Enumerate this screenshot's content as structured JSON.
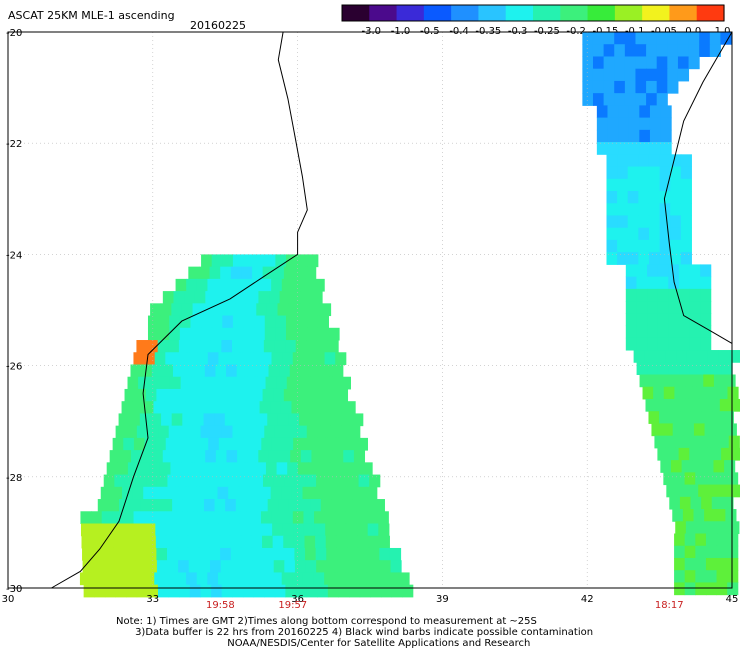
{
  "header": {
    "title": "ASCAT 25KM MLE-1 ascending",
    "date": "20160225"
  },
  "colorbar": {
    "labels": [
      "-3.0",
      "-1.0",
      "-0.5",
      "-0.4",
      "-0.35",
      "-0.3",
      "-0.25",
      "-0.2",
      "-0.15",
      "-0.1",
      "-0.05",
      "0.0",
      "1.0"
    ],
    "colors": [
      "#2a0030",
      "#4b0a8c",
      "#3a2ad8",
      "#0a5aff",
      "#1f90ff",
      "#29c4ff",
      "#1ef2ee",
      "#25f2b0",
      "#3cf07c",
      "#37ec3a",
      "#9af024",
      "#f2f21e",
      "#ff9a1a",
      "#ff3a10"
    ]
  },
  "map": {
    "lon_range": [
      30,
      45
    ],
    "lat_range": [
      -30,
      -20
    ],
    "lon_ticks": [
      "30",
      "33",
      "36",
      "39",
      "42",
      "45"
    ],
    "lat_ticks": [
      "-20",
      "-22",
      "-24",
      "-26",
      "-28",
      "-30"
    ],
    "pass_times": [
      {
        "label": "19:58",
        "lon": 34.4
      },
      {
        "label": "19:57",
        "lon": 35.9
      },
      {
        "label": "18:17",
        "lon": 43.7
      }
    ],
    "swaths": [
      {
        "name": "west-pass",
        "lon_range": [
          31.5,
          38.2
        ],
        "lat_range": [
          -30.1,
          -24.0
        ],
        "note": "mostly -0.3 to -0.15"
      },
      {
        "name": "east-pass",
        "lon_range": [
          41.9,
          45
        ],
        "lat_range": [
          -30.1,
          -20.0
        ],
        "note": "north end -0.4 to -0.3, south end -0.2 to -0.15"
      }
    ]
  },
  "notes": [
    "Note: 1) Times are GMT 2)Times along bottom correspond to measurement at ~25S",
    "      3)Data buffer is 22 hrs from 20160225 4) Black wind barbs indicate possible contamination",
    "                                   NOAA/NESDIS/Center for Satellite Applications and Research"
  ]
}
